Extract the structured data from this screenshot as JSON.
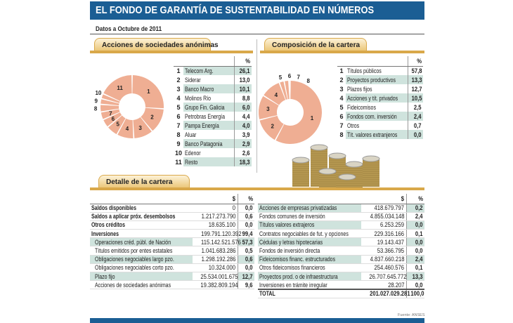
{
  "title": "EL FONDO DE GARANTÍA DE SUSTENTABILIDAD EN NÚMEROS",
  "subtitle": "Datos a Octubre de 2011",
  "colors": {
    "header": "#1b5e94",
    "donut": "#efae93",
    "row_shade": "#cfe3dd",
    "tab": "#ecc77a"
  },
  "chart_data": [
    {
      "type": "pie",
      "variant": "donut",
      "title": "Acciones de sociedades anónimas",
      "pct_header": "%",
      "categories": [
        "Telecom Arg.",
        "Siderar",
        "Banco Macro",
        "Molinos Río",
        "Grupo Fin. Galicia",
        "Petrobras Energía",
        "Pampa Energía",
        "Aluar",
        "Banco Patagonia",
        "Edenor",
        "Resto"
      ],
      "labels": [
        "26,1",
        "13,0",
        "10,1",
        "8,8",
        "6,0",
        "4,4",
        "4,0",
        "3,9",
        "2,9",
        "2,6",
        "18,3"
      ],
      "values": [
        26.1,
        13.0,
        10.1,
        8.8,
        6.0,
        4.4,
        4.0,
        3.9,
        2.9,
        2.6,
        18.3
      ]
    },
    {
      "type": "pie",
      "variant": "donut",
      "title": "Composición de la cartera",
      "pct_header": "%",
      "categories": [
        "Títulos públicos",
        "Proyectos productivos",
        "Plazos fijos",
        "Acciones y tít. privados",
        "Fideicomisos",
        "Fondos com. inversión",
        "Otros",
        "Tít. valores extranjeros"
      ],
      "labels": [
        "57,8",
        "13,3",
        "12,7",
        "10,5",
        "2,5",
        "2,4",
        "0,7",
        "0,0"
      ],
      "values": [
        57.8,
        13.3,
        12.7,
        10.5,
        2.5,
        2.4,
        0.7,
        0.0
      ]
    }
  ],
  "detail": {
    "title": "Detalle de la cartera",
    "col_amount": "$",
    "col_pct": "%",
    "left": [
      {
        "label": "Saldos disponibles",
        "amount": "0",
        "pct": "0,0",
        "style": "b"
      },
      {
        "label": "Saldos a aplicar próx. desembolsos",
        "amount": "1.217.273.790",
        "pct": "0,6",
        "style": "b"
      },
      {
        "label": "Otros créditos",
        "amount": "18.635.100",
        "pct": "0,0",
        "style": "b"
      },
      {
        "label": "Inversiones",
        "amount": "199.791.120.392",
        "pct": "99,4",
        "style": "b"
      },
      {
        "label": "Operaciones créd. públ. de Nación",
        "amount": "115.142.521.576",
        "pct": "57,3",
        "style": "ind sh"
      },
      {
        "label": "Títulos emitidos por entes estatales",
        "amount": "1.041.683.286",
        "pct": "0,5",
        "style": "ind"
      },
      {
        "label": "Obligaciones negociables largo pzo.",
        "amount": "1.298.192.286",
        "pct": "0,6",
        "style": "ind sh"
      },
      {
        "label": "Obligaciones negociables corto pzo.",
        "amount": "10.324.000",
        "pct": "0,0",
        "style": "ind"
      },
      {
        "label": "Plazo fijo",
        "amount": "25.534.001.675",
        "pct": "12,7",
        "style": "ind sh"
      },
      {
        "label": "Acciones de sociedades anónimas",
        "amount": "19.382.809.194",
        "pct": "9,6",
        "style": "ind"
      }
    ],
    "right": [
      {
        "label": "Acciones de empresas privatizadas",
        "amount": "418.679.797",
        "pct": "0,2",
        "style": "sh"
      },
      {
        "label": "Fondos comunes de inversión",
        "amount": "4.855.034.148",
        "pct": "2,4",
        "style": ""
      },
      {
        "label": "Títulos valores extrajeros",
        "amount": "6.253.259",
        "pct": "0,0",
        "style": "sh"
      },
      {
        "label": "Contratos negociables de fut. y opciones",
        "amount": "229.316.166",
        "pct": "0,1",
        "style": ""
      },
      {
        "label": "Cédulas y letras hipotecarias",
        "amount": "19.143.437",
        "pct": "0,0",
        "style": "sh"
      },
      {
        "label": "Fondos de inversión directa",
        "amount": "53.366.795",
        "pct": "0,0",
        "style": ""
      },
      {
        "label": "Fideicomisos financ. estructurados",
        "amount": "4.837.660.218",
        "pct": "2,4",
        "style": "sh"
      },
      {
        "label": "Otros fideicomisos financieros",
        "amount": "254.460.576",
        "pct": "0,1",
        "style": ""
      },
      {
        "label": "Proyectos prod. o de infraestructura",
        "amount": "26.707.645.772",
        "pct": "13,3",
        "style": "sh"
      },
      {
        "label": "Inversiones en trámite irregular",
        "amount": "28.207",
        "pct": "0,0",
        "style": ""
      },
      {
        "label": "TOTAL",
        "amount": "201.027.029.281",
        "pct": "100,0",
        "style": "tot"
      }
    ]
  },
  "source": "Fuente: ANSES"
}
